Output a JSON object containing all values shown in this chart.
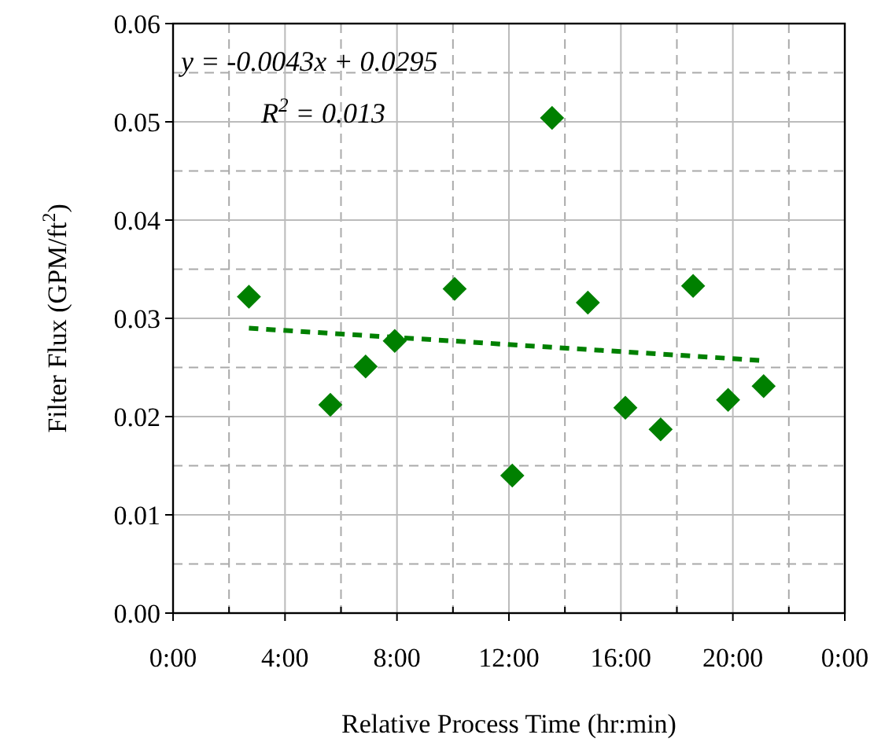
{
  "chart_data": {
    "type": "scatter",
    "xlabel": "Relative Process Time (hr:min)",
    "ylabel": "Filter Flux (GPM/ft$^{2}$)",
    "annotations": [
      "y = -0.0043x + 0.0295",
      "R$^{2}$ = 0.013"
    ],
    "xlim": [
      0,
      24
    ],
    "xticks": [
      {
        "value": 0,
        "label": "0:00"
      },
      {
        "value": 4,
        "label": "4:00"
      },
      {
        "value": 8,
        "label": "8:00"
      },
      {
        "value": 12,
        "label": "12:00"
      },
      {
        "value": 16,
        "label": "16:00"
      },
      {
        "value": 20,
        "label": "20:00"
      },
      {
        "value": 24,
        "label": "0:00"
      }
    ],
    "ylim": [
      0,
      0.06
    ],
    "yticks": [
      {
        "value": 0,
        "label": "0.00"
      },
      {
        "value": 0.01,
        "label": "0.01"
      },
      {
        "value": 0.02,
        "label": "0.02"
      },
      {
        "value": 0.03,
        "label": "0.03"
      },
      {
        "value": 0.04,
        "label": "0.04"
      },
      {
        "value": 0.05,
        "label": "0.05"
      },
      {
        "value": 0.06,
        "label": "0.06"
      }
    ],
    "grid": true,
    "series": [
      {
        "color": "#008000",
        "marker": "diamond",
        "x": [
          2.71,
          5.62,
          6.88,
          7.92,
          10.06,
          12.12,
          13.54,
          14.82,
          16.16,
          17.42,
          18.58,
          19.83,
          21.1
        ],
        "values": [
          0.0322,
          0.0212,
          0.0251,
          0.0277,
          0.033,
          0.014,
          0.0504,
          0.0316,
          0.0209,
          0.0187,
          0.0333,
          0.0217,
          0.0231
        ]
      },
      {
        "type": "line",
        "color": "#008000",
        "marker": "none",
        "line_style": "dashed",
        "x": [
          2.71,
          21.1
        ],
        "values": [
          0.029,
          0.0257
        ]
      }
    ]
  }
}
